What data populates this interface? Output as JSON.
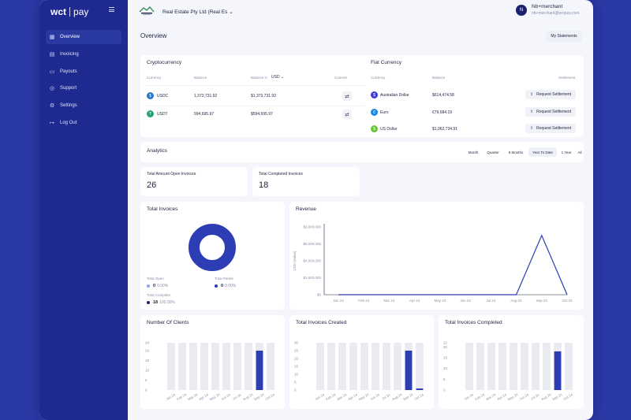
{
  "brand": {
    "wct": "wct",
    "pay": "pay"
  },
  "sidebar": {
    "items": [
      {
        "label": "Overview",
        "icon": "grid-icon"
      },
      {
        "label": "Invoicing",
        "icon": "document-icon"
      },
      {
        "label": "Payouts",
        "icon": "wallet-icon"
      },
      {
        "label": "Support",
        "icon": "globe-icon"
      },
      {
        "label": "Settings",
        "icon": "gear-icon"
      },
      {
        "label": "Log Out",
        "icon": "logout-icon"
      }
    ]
  },
  "header": {
    "company": "Real Estate Pty Ltd (Real Es",
    "user_initial": "N",
    "user_name": "Nb+merchant",
    "user_email": "nb+merchant@wctpay.com"
  },
  "page": {
    "title": "Overview",
    "statements_button": "My Statements"
  },
  "crypto": {
    "title": "Cryptocurrency",
    "headers": {
      "currency": "Currency",
      "balance": "Balance",
      "balance_in": "Balance in",
      "currency_select": "USD",
      "convert": "Convert"
    },
    "rows": [
      {
        "currency": "USDC",
        "balance": "1,373,731.92",
        "balance_usd": "$1,373,731.92",
        "color": "#2775ca",
        "glyph": "$"
      },
      {
        "currency": "USDT",
        "balance": "594,695.97",
        "balance_usd": "$594,695.97",
        "color": "#26a17b",
        "glyph": "T"
      }
    ]
  },
  "fiat": {
    "title": "Fiat Currency",
    "headers": {
      "currency": "Currency",
      "balance": "Balance",
      "settlement": "Settlement"
    },
    "rows": [
      {
        "currency": "Australian Dollar",
        "balance": "$614,474.58",
        "button": "Request Settlement",
        "color": "#3d3ad6",
        "glyph": "$"
      },
      {
        "currency": "Euro",
        "balance": "€79,684.19",
        "button": "Request Settlement",
        "color": "#1e88e5",
        "glyph": "€"
      },
      {
        "currency": "US Dollar",
        "balance": "$1,062,734.91",
        "button": "Request Settlement",
        "color": "#6ac435",
        "glyph": "$"
      }
    ]
  },
  "analytics": {
    "title": "Analytics",
    "ranges": [
      "Month",
      "Quarter",
      "6 Months",
      "Year To Date",
      "1 Year",
      "All"
    ],
    "active_range": "Year To Date"
  },
  "stats": {
    "open": {
      "label": "Total Amount Open Invoices",
      "value": "26"
    },
    "completed": {
      "label": "Total Completed Invoices",
      "value": "18"
    }
  },
  "total_invoices": {
    "title": "Total Invoices",
    "legend": [
      {
        "label": "Total Open",
        "count": "0",
        "pct": "0.00%",
        "color": "#8fa4e8"
      },
      {
        "label": "Total Partial",
        "count": "0",
        "pct": "0.00%",
        "color": "#2a3ab8"
      },
      {
        "label": "Total Complete",
        "count": "18",
        "pct": "100.00%",
        "color": "#1a2270"
      }
    ]
  },
  "colors": {
    "accent": "#2d3eb5",
    "bar_bg": "#e9ebf1"
  },
  "chart_data": [
    {
      "type": "pie",
      "title": "Total Invoices",
      "labels": [
        "Total Open",
        "Total Partial",
        "Total Complete"
      ],
      "values": [
        0,
        0,
        18
      ]
    },
    {
      "type": "line",
      "title": "Revenue",
      "ylabel": "USD (Value)",
      "x": [
        "Jan 24",
        "Feb 24",
        "Mar 24",
        "Apr 24",
        "May 24",
        "Jun 24",
        "Jul 24",
        "Aug 24",
        "Sep 24",
        "Oct 24"
      ],
      "y": [
        0,
        0,
        0,
        0,
        0,
        0,
        0,
        0,
        7000000,
        0
      ],
      "ylim": [
        0,
        8000000
      ],
      "yticks": [
        "$8,000,000",
        "$6,000,000",
        "$4,000,000",
        "$2,000,000",
        "$0"
      ]
    },
    {
      "type": "bar",
      "title": "Number Of Clients",
      "categories": [
        "Jan 24",
        "Feb 24",
        "Mar 24",
        "Apr 24",
        "May 24",
        "Jun 24",
        "Jul 24",
        "Aug 24",
        "Sep 24",
        "Oct 24"
      ],
      "values": [
        0,
        0,
        0,
        0,
        0,
        0,
        0,
        0,
        20,
        0
      ],
      "ylim": [
        0,
        24
      ],
      "yticks": [
        "24",
        "20",
        "15",
        "10",
        "5",
        "0"
      ]
    },
    {
      "type": "bar",
      "title": "Total Invoices Created",
      "categories": [
        "Jan 24",
        "Feb 24",
        "Mar 24",
        "Apr 24",
        "May 24",
        "Jun 24",
        "Jul 24",
        "Aug 24",
        "Sep 24",
        "Oct 24"
      ],
      "values": [
        0,
        0,
        0,
        0,
        0,
        0,
        0,
        0,
        25,
        1
      ],
      "ylim": [
        0,
        30
      ],
      "yticks": [
        "30",
        "25",
        "20",
        "15",
        "10",
        "5",
        "0"
      ]
    },
    {
      "type": "bar",
      "title": "Total Invoices Completed",
      "categories": [
        "Jan 24",
        "Feb 24",
        "Mar 24",
        "Apr 24",
        "May 24",
        "Jun 24",
        "Jul 24",
        "Aug 24",
        "Sep 24",
        "Oct 24"
      ],
      "values": [
        0,
        0,
        0,
        0,
        0,
        0,
        0,
        0,
        18,
        0
      ],
      "ylim": [
        0,
        22
      ],
      "yticks": [
        "22",
        "20",
        "15",
        "10",
        "5",
        "0"
      ]
    }
  ]
}
